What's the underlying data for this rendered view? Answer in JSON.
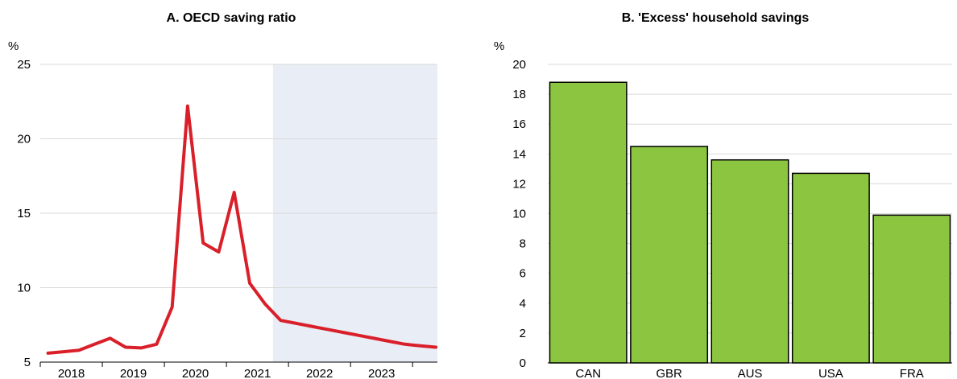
{
  "colors": {
    "line": "#d9202a",
    "bar_fill": "#8cc641",
    "bar_stroke": "#000000",
    "shade": "#e9edf5",
    "grid": "#d9d9d9"
  },
  "chart_data": [
    {
      "type": "line",
      "title": "A. OECD saving ratio",
      "unit": "%",
      "ylim": [
        5,
        25
      ],
      "yticks": [
        5,
        10,
        15,
        20,
        25
      ],
      "xlim": [
        2017.5,
        2023.9
      ],
      "xtick_labels": [
        "2018",
        "2019",
        "2020",
        "2021",
        "2022",
        "2023"
      ],
      "xtick_label_positions": [
        2018,
        2019,
        2020,
        2021,
        2022,
        2023
      ],
      "xtick_marks": [
        2017.5,
        2018.5,
        2019.5,
        2020.5,
        2021.5,
        2022.5,
        2023.5
      ],
      "shaded_from": 2021.25,
      "grid": true,
      "series": [
        {
          "x": [
            2017.625,
            2017.875,
            2018.125,
            2018.375,
            2018.625,
            2018.875,
            2019.125,
            2019.375,
            2019.625,
            2019.875,
            2020.125,
            2020.375,
            2020.625,
            2020.875,
            2021.125,
            2021.375,
            2021.625,
            2021.875,
            2022.125,
            2022.375,
            2022.625,
            2022.875,
            2023.125,
            2023.375,
            2023.625,
            2023.875
          ],
          "values": [
            5.6,
            5.7,
            5.8,
            6.2,
            6.6,
            6.0,
            5.95,
            6.2,
            8.7,
            22.2,
            13.0,
            12.4,
            16.4,
            10.3,
            8.9,
            7.8,
            7.6,
            7.4,
            7.2,
            7.0,
            6.8,
            6.6,
            6.4,
            6.2,
            6.1,
            6.0
          ]
        }
      ]
    },
    {
      "type": "bar",
      "title": "B. 'Excess' household savings",
      "unit": "%",
      "ylim": [
        0,
        20
      ],
      "yticks": [
        0,
        2,
        4,
        6,
        8,
        10,
        12,
        14,
        16,
        18,
        20
      ],
      "grid": true,
      "categories": [
        "CAN",
        "GBR",
        "AUS",
        "USA",
        "FRA"
      ],
      "values": [
        18.8,
        14.5,
        13.6,
        12.7,
        9.9
      ]
    }
  ]
}
